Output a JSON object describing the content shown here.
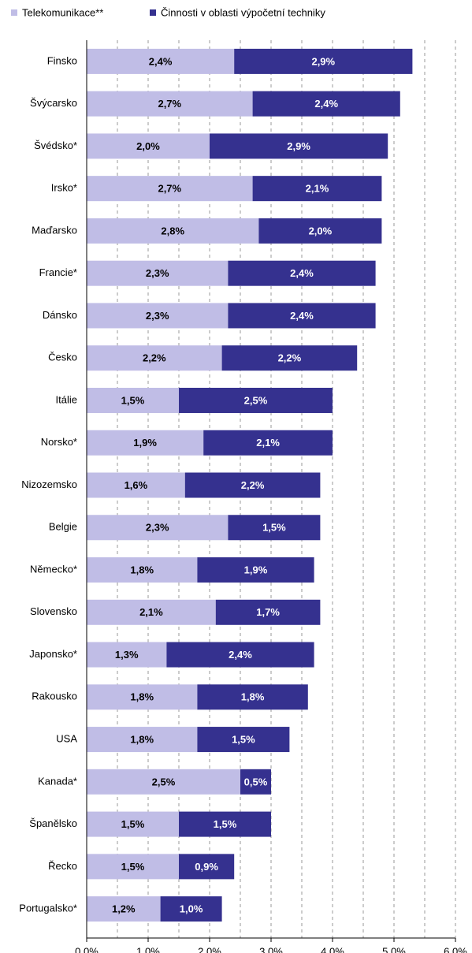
{
  "chart_data": {
    "type": "stacked-bar-horizontal",
    "categories": [
      "Finsko",
      "Švýcarsko",
      "Švédsko*",
      "Irsko*",
      "Maďarsko",
      "Francie*",
      "Dánsko",
      "Česko",
      "Itálie",
      "Norsko*",
      "Nizozemsko",
      "Belgie",
      "Německo*",
      "Slovensko",
      "Japonsko*",
      "Rakousko",
      "USA",
      "Kanada*",
      "Španělsko",
      "Řecko",
      "Portugalsko*"
    ],
    "series": [
      {
        "name": "Telekomunikace**",
        "color": "#c0bde6",
        "values": [
          2.4,
          2.7,
          2.0,
          2.7,
          2.8,
          2.3,
          2.3,
          2.2,
          1.5,
          1.9,
          1.6,
          2.3,
          1.8,
          2.1,
          1.3,
          1.8,
          1.8,
          2.5,
          1.5,
          1.5,
          1.2
        ],
        "value_labels": [
          "2,4%",
          "2,7%",
          "2,0%",
          "2,7%",
          "2,8%",
          "2,3%",
          "2,3%",
          "2,2%",
          "1,5%",
          "1,9%",
          "1,6%",
          "2,3%",
          "1,8%",
          "2,1%",
          "1,3%",
          "1,8%",
          "1,8%",
          "2,5%",
          "1,5%",
          "1,5%",
          "1,2%"
        ]
      },
      {
        "name": "Činnosti v oblasti výpočetní techniky",
        "color": "#35318f",
        "values": [
          2.9,
          2.4,
          2.9,
          2.1,
          2.0,
          2.4,
          2.4,
          2.2,
          2.5,
          2.1,
          2.2,
          1.5,
          1.9,
          1.7,
          2.4,
          1.8,
          1.5,
          0.5,
          1.5,
          0.9,
          1.0
        ],
        "value_labels": [
          "2,9%",
          "2,4%",
          "2,9%",
          "2,1%",
          "2,0%",
          "2,4%",
          "2,4%",
          "2,2%",
          "2,5%",
          "2,1%",
          "2,2%",
          "1,5%",
          "1,9%",
          "1,7%",
          "2,4%",
          "1,8%",
          "1,5%",
          "0,5%",
          "1,5%",
          "0,9%",
          "1,0%"
        ]
      }
    ],
    "xlim": [
      0,
      6
    ],
    "xticks": [
      {
        "value": 0,
        "label": "0,0%"
      },
      {
        "value": 1,
        "label": "1,0%"
      },
      {
        "value": 2,
        "label": "2,0%"
      },
      {
        "value": 3,
        "label": "3,0%"
      },
      {
        "value": 4,
        "label": "4,0%"
      },
      {
        "value": 5,
        "label": "5,0%"
      },
      {
        "value": 6,
        "label": "6,0%"
      }
    ],
    "minor_grid": [
      0.5,
      1.5,
      2.5,
      3.5,
      4.5,
      5.5
    ],
    "grid": true,
    "legend": "top"
  }
}
